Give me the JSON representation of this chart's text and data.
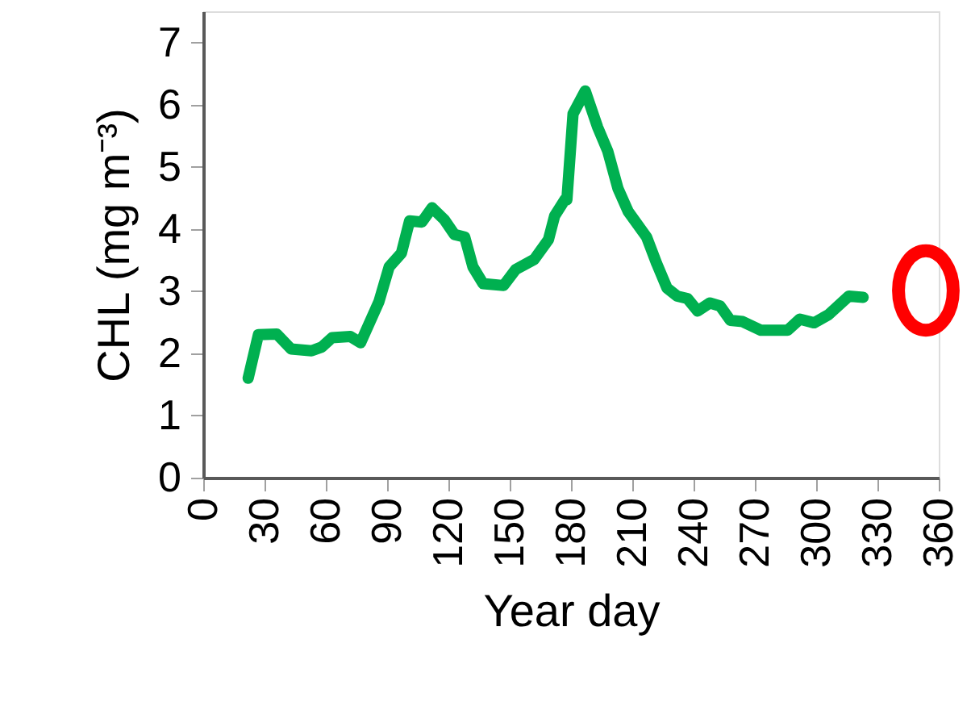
{
  "chart_data": {
    "type": "line",
    "xlabel": "Year day",
    "ylabel": "CHL (mg m⁻³)",
    "x": [
      22,
      27,
      36,
      43,
      53,
      58,
      63,
      72,
      77,
      86,
      91,
      97,
      101,
      107,
      112,
      118,
      123,
      128,
      132,
      137,
      147,
      153,
      162,
      169,
      172,
      177,
      178,
      181,
      187,
      193,
      198,
      203,
      208,
      217,
      222,
      227,
      232,
      237,
      242,
      248,
      253,
      258,
      264,
      273,
      286,
      292,
      299,
      306,
      316,
      323
    ],
    "series": [
      {
        "color": "#00b050",
        "values": [
          1.6,
          2.3,
          2.31,
          2.07,
          2.04,
          2.1,
          2.25,
          2.27,
          2.17,
          2.83,
          3.39,
          3.61,
          4.13,
          4.11,
          4.34,
          4.15,
          3.91,
          3.87,
          3.39,
          3.12,
          3.09,
          3.35,
          3.51,
          3.83,
          4.21,
          4.47,
          4.47,
          5.85,
          6.22,
          5.64,
          5.25,
          4.65,
          4.28,
          3.87,
          3.44,
          3.05,
          2.92,
          2.88,
          2.68,
          2.81,
          2.76,
          2.53,
          2.51,
          2.37,
          2.37,
          2.55,
          2.49,
          2.62,
          2.92,
          2.9
        ]
      }
    ],
    "xlim": [
      0,
      360
    ],
    "xticks": [
      0,
      30,
      60,
      90,
      120,
      150,
      180,
      210,
      240,
      270,
      300,
      330,
      360
    ],
    "ylim": [
      0,
      7.5
    ],
    "yticks": [
      0,
      1,
      2,
      3,
      4,
      5,
      6,
      7
    ],
    "grid": false,
    "marker": "none",
    "line_style": "solid"
  }
}
